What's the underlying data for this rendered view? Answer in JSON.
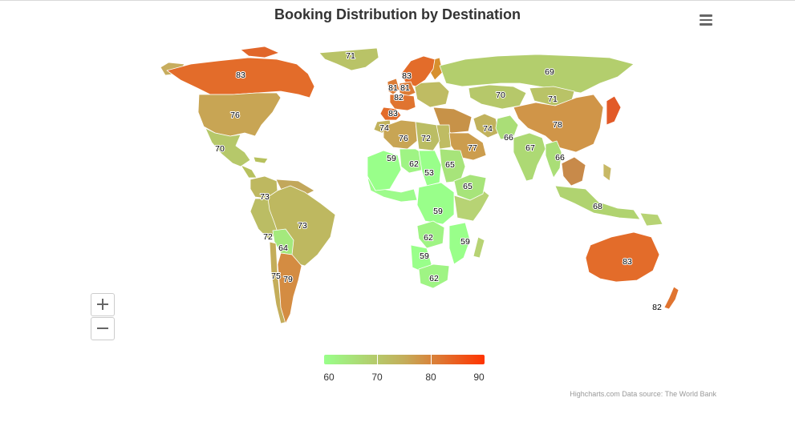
{
  "title": "Booking Distribution by Destination",
  "menu_icon": "hamburger-menu-icon",
  "colors": {
    "min": "#99ff8a",
    "mid": "#c4ad5a",
    "max": "#ff3300"
  },
  "chart_data": {
    "type": "map",
    "title": "Booking Distribution by Destination",
    "color_axis": {
      "min": 60,
      "max": 90,
      "ticks": [
        "60",
        "70",
        "80",
        "90"
      ]
    },
    "regions": [
      {
        "name": "Greenland",
        "value": 71
      },
      {
        "name": "Canada",
        "value": 83
      },
      {
        "name": "United States",
        "value": 76
      },
      {
        "name": "Mexico",
        "value": 70
      },
      {
        "name": "Colombia",
        "value": 73
      },
      {
        "name": "Brazil",
        "value": 73
      },
      {
        "name": "Peru",
        "value": 72
      },
      {
        "name": "Bolivia",
        "value": 64
      },
      {
        "name": "Chile",
        "value": 75
      },
      {
        "name": "Argentina",
        "value": 79
      },
      {
        "name": "Norway",
        "value": 83
      },
      {
        "name": "United Kingdom",
        "value": 81
      },
      {
        "name": "Netherlands",
        "value": 81
      },
      {
        "name": "France",
        "value": 82
      },
      {
        "name": "Spain",
        "value": 83
      },
      {
        "name": "Morocco",
        "value": 74
      },
      {
        "name": "Algeria",
        "value": 76
      },
      {
        "name": "Libya",
        "value": 72
      },
      {
        "name": "Russia",
        "value": 69
      },
      {
        "name": "Kazakhstan",
        "value": 70
      },
      {
        "name": "Mongolia",
        "value": 71
      },
      {
        "name": "China",
        "value": 78
      },
      {
        "name": "Iran",
        "value": 74
      },
      {
        "name": "Afghanistan",
        "value": 66
      },
      {
        "name": "Saudi Arabia",
        "value": 77
      },
      {
        "name": "India",
        "value": 67
      },
      {
        "name": "Myanmar",
        "value": 66
      },
      {
        "name": "Indonesia",
        "value": 68
      },
      {
        "name": "Australia",
        "value": 83
      },
      {
        "name": "New Zealand",
        "value": 82
      },
      {
        "name": "Mali",
        "value": 59
      },
      {
        "name": "Niger",
        "value": 62
      },
      {
        "name": "Chad",
        "value": 53
      },
      {
        "name": "Sudan",
        "value": 65
      },
      {
        "name": "Ethiopia",
        "value": 65
      },
      {
        "name": "Congo DR",
        "value": 59
      },
      {
        "name": "Zambia",
        "value": 62
      },
      {
        "name": "Mozambique",
        "value": 59
      },
      {
        "name": "Namibia",
        "value": 59
      },
      {
        "name": "South Africa",
        "value": 62
      }
    ]
  },
  "zoom": {
    "in_label": "Zoom in",
    "out_label": "Zoom out"
  },
  "credits": "Highcharts.com Data source: The World Bank"
}
